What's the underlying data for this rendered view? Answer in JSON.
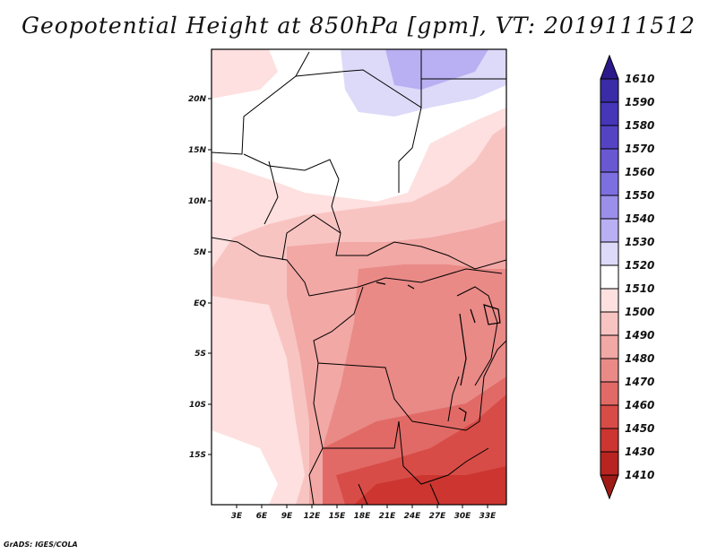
{
  "title": "Geopotential Height at 850hPa [gpm], VT: 2019111512",
  "credit": "GrADS: IGES/COLA",
  "map": {
    "lat_labels": [
      "20N",
      "15N",
      "10N",
      "5N",
      "EQ",
      "5S",
      "10S",
      "15S"
    ],
    "lon_labels": [
      "3E",
      "6E",
      "9E",
      "12E",
      "15E",
      "18E",
      "21E",
      "24E",
      "27E",
      "30E",
      "33E"
    ]
  },
  "colorbar": {
    "levels": [
      "1610",
      "1590",
      "1580",
      "1570",
      "1560",
      "1550",
      "1540",
      "1530",
      "1520",
      "1510",
      "1500",
      "1490",
      "1480",
      "1470",
      "1460",
      "1450",
      "1430",
      "1410"
    ],
    "colors": {
      "top_arrow": "#2c1a8c",
      "c1590": "#3a2ca6",
      "c1580": "#4636b8",
      "c1570": "#5444c4",
      "c1560": "#6858d2",
      "c1550": "#7c6fe0",
      "c1540": "#9a90ea",
      "c1530": "#b8b0f2",
      "c1520": "#dcdaf8",
      "c1510": "#ffffff",
      "c1500": "#fde0df",
      "c1490": "#f8c4c2",
      "c1480": "#f2a8a5",
      "c1470": "#e98a87",
      "c1460": "#e16a66",
      "c1450": "#d84c47",
      "c1430": "#cc3530",
      "c1410": "#b82520",
      "bottom_arrow": "#a01a16"
    }
  }
}
